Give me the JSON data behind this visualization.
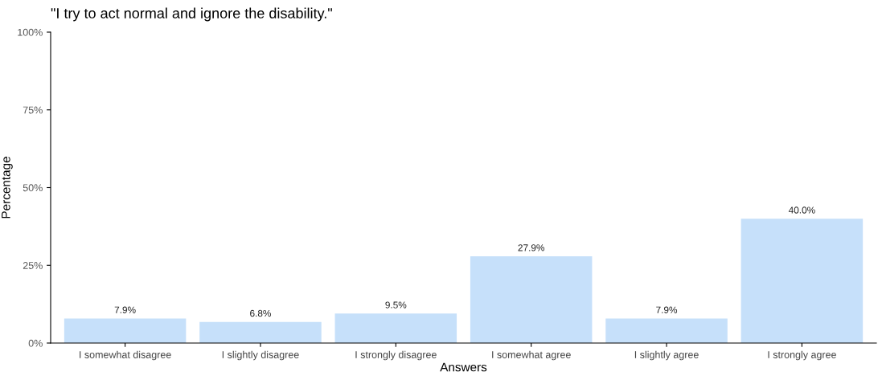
{
  "chart_data": {
    "type": "bar",
    "title": "\"I try to act normal and ignore the disability.\"",
    "xlabel": "Answers",
    "ylabel": "Percentage",
    "categories": [
      "I somewhat disagree",
      "I slightly disagree",
      "I strongly disagree",
      "I somewhat agree",
      "I slightly agree",
      "I strongly agree"
    ],
    "values": [
      7.9,
      6.8,
      9.5,
      27.9,
      7.9,
      40.0
    ],
    "value_labels": [
      "7.9%",
      "6.8%",
      "9.5%",
      "27.9%",
      "7.9%",
      "40.0%"
    ],
    "color": "#c6e0fa",
    "ylim": [
      0,
      100
    ],
    "yticks": [
      {
        "value": 0,
        "label": "0%"
      },
      {
        "value": 25,
        "label": "25%"
      },
      {
        "value": 50,
        "label": "50%"
      },
      {
        "value": 75,
        "label": "75%"
      },
      {
        "value": 100,
        "label": "100%"
      }
    ],
    "grid": false,
    "legend": false
  }
}
